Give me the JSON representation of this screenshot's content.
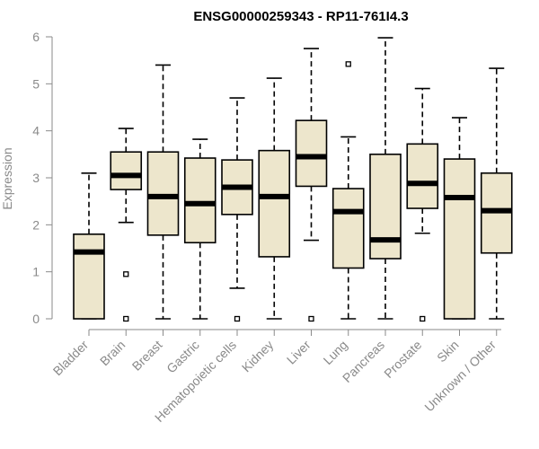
{
  "chart_data": {
    "type": "boxplot",
    "title": "ENSG00000259343 - RP11-761I4.3",
    "xlabel": "",
    "ylabel": "Expression",
    "ylim": [
      0,
      6
    ],
    "yticks": [
      0,
      1,
      2,
      3,
      4,
      5,
      6
    ],
    "categories": [
      "Bladder",
      "Brain",
      "Breast",
      "Gastric",
      "Hematopoietic cells",
      "Kidney",
      "Liver",
      "Lung",
      "Pancreas",
      "Prostate",
      "Skin",
      "Unknown / Other"
    ],
    "boxes": [
      {
        "name": "Bladder",
        "min": 0,
        "q1": 0,
        "median": 1.42,
        "q3": 1.8,
        "max": 3.1,
        "outliers": []
      },
      {
        "name": "Brain",
        "min": 2.05,
        "q1": 2.75,
        "median": 3.05,
        "q3": 3.55,
        "max": 4.05,
        "outliers": [
          0.95,
          0
        ]
      },
      {
        "name": "Breast",
        "min": 0,
        "q1": 1.78,
        "median": 2.6,
        "q3": 3.55,
        "max": 5.4,
        "outliers": []
      },
      {
        "name": "Gastric",
        "min": 0,
        "q1": 1.62,
        "median": 2.45,
        "q3": 3.42,
        "max": 3.82,
        "outliers": []
      },
      {
        "name": "Hematopoietic cells",
        "min": 0.65,
        "q1": 2.22,
        "median": 2.8,
        "q3": 3.38,
        "max": 4.7,
        "outliers": [
          0
        ]
      },
      {
        "name": "Kidney",
        "min": 0,
        "q1": 1.32,
        "median": 2.6,
        "q3": 3.58,
        "max": 5.12,
        "outliers": []
      },
      {
        "name": "Liver",
        "min": 1.67,
        "q1": 2.82,
        "median": 3.45,
        "q3": 4.22,
        "max": 5.75,
        "outliers": [
          0
        ]
      },
      {
        "name": "Lung",
        "min": 0,
        "q1": 1.08,
        "median": 2.28,
        "q3": 2.77,
        "max": 3.87,
        "outliers": [
          5.42
        ]
      },
      {
        "name": "Pancreas",
        "min": 0,
        "q1": 1.28,
        "median": 1.68,
        "q3": 3.5,
        "max": 5.98,
        "outliers": []
      },
      {
        "name": "Prostate",
        "min": 1.82,
        "q1": 2.35,
        "median": 2.88,
        "q3": 3.72,
        "max": 4.9,
        "outliers": [
          0
        ]
      },
      {
        "name": "Skin",
        "min": 0,
        "q1": 0,
        "median": 2.58,
        "q3": 3.4,
        "max": 4.28,
        "outliers": []
      },
      {
        "name": "Unknown / Other",
        "min": 0,
        "q1": 1.4,
        "median": 2.3,
        "q3": 3.1,
        "max": 5.33,
        "outliers": []
      }
    ],
    "colors": {
      "box_fill": "#ede6cc",
      "line": "#000000",
      "axis": "#8a8a8a"
    }
  }
}
